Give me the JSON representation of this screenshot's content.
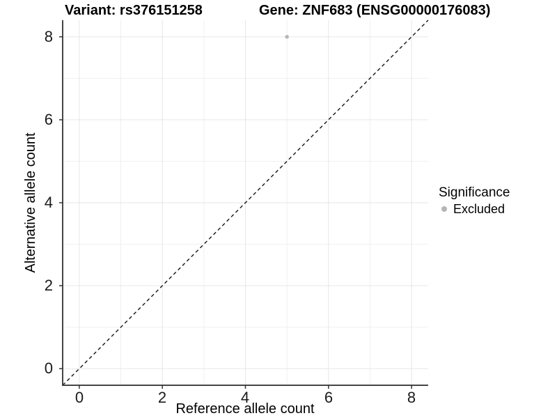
{
  "chart_data": {
    "type": "scatter",
    "title_left": "Variant: rs376151258",
    "title_right": "Gene: ZNF683 (ENSG00000176083)",
    "xlabel": "Reference allele count",
    "ylabel": "Alternative allele count",
    "xlim": [
      -0.4,
      8.4
    ],
    "ylim": [
      -0.4,
      8.4
    ],
    "x_ticks": [
      "0",
      "2",
      "4",
      "6",
      "8"
    ],
    "y_ticks": [
      "0",
      "2",
      "4",
      "6",
      "8"
    ],
    "major_grid_values": [
      0,
      2,
      4,
      6,
      8
    ],
    "minor_grid_values": [
      1,
      3,
      5,
      7
    ],
    "grid": true,
    "points": [
      {
        "x": 5,
        "y": 8,
        "series": "Excluded"
      }
    ],
    "identity_line": {
      "style": "dashed",
      "from": [
        -0.4,
        -0.4
      ],
      "to": [
        8.4,
        8.4
      ]
    },
    "legend": {
      "position": "right",
      "title": "Significance",
      "items": [
        {
          "label": "Excluded",
          "color": "#b5b5b5"
        }
      ]
    },
    "colors": {
      "background": "#ffffff",
      "point": "#b5b5b5",
      "grid_major": "#e6e6e6",
      "grid_minor": "#f0f0f0",
      "axis_line": "#454545",
      "tick_mark": "#333333",
      "identity_line": "#141414"
    }
  }
}
